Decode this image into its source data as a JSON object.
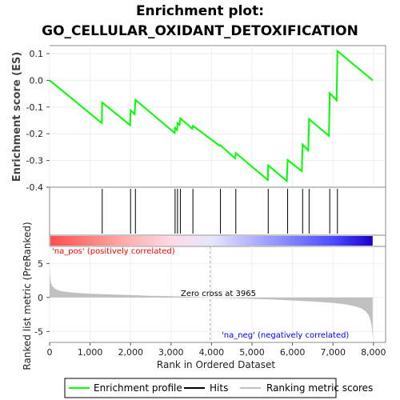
{
  "chart_data": {
    "type": "line",
    "title_line1": "Enrichment plot:",
    "title_line2": "GO_CELLULAR_OXIDANT_DETOXIFICATION",
    "top_panel": {
      "ylabel": "Enrichment score (ES)",
      "ylim": [
        -0.4,
        0.13
      ],
      "yticks": [
        0.1,
        0.0,
        -0.1,
        -0.2,
        -0.3,
        -0.4
      ],
      "ytick_labels": [
        "0.1",
        "0.0",
        "-0.1",
        "-0.2",
        "-0.3",
        "-0.4"
      ],
      "series": [
        {
          "name": "Enrichment profile",
          "color": "#00ff00",
          "x": [
            0,
            1290,
            1300,
            1990,
            2000,
            2100,
            2120,
            3090,
            3100,
            3150,
            3160,
            3210,
            3230,
            3520,
            3540,
            4200,
            4220,
            4580,
            4600,
            5390,
            5400,
            5860,
            5880,
            6230,
            6250,
            6390,
            6410,
            6900,
            6920,
            7090,
            7110,
            7980
          ],
          "y": [
            0.0,
            -0.16,
            -0.083,
            -0.168,
            -0.112,
            -0.127,
            -0.073,
            -0.197,
            -0.178,
            -0.186,
            -0.16,
            -0.167,
            -0.142,
            -0.181,
            -0.17,
            -0.245,
            -0.243,
            -0.292,
            -0.272,
            -0.373,
            -0.318,
            -0.377,
            -0.298,
            -0.34,
            -0.24,
            -0.263,
            -0.145,
            -0.208,
            -0.048,
            -0.075,
            0.11,
            0.0
          ]
        }
      ]
    },
    "hits": {
      "name": "Hits",
      "x": [
        1300,
        2000,
        2120,
        3100,
        3160,
        3230,
        3540,
        4220,
        4600,
        5400,
        5880,
        6250,
        6410,
        6920,
        7110
      ]
    },
    "ranking_colorbar": {
      "stops": [
        "#ff4d4d",
        "#ff8080",
        "#ffb3b3",
        "#ffd9e6",
        "#e6e6ff",
        "#b3b3ff",
        "#8080ff",
        "#4d4dff",
        "#1a00cc"
      ],
      "label_pos": "'na_pos' (positively correlated)",
      "label_neg": "'na_neg' (negatively correlated)",
      "pos_color": "#ff0000",
      "neg_color": "#0000ff"
    },
    "bottom_panel": {
      "ylabel": "Ranked list metric (PreRanked)",
      "ylim": [
        -6.6,
        7.5
      ],
      "yticks": [
        5,
        0,
        -5
      ],
      "ytick_labels": [
        "5",
        "0",
        "-5"
      ],
      "series": [
        {
          "name": "Ranking metric scores",
          "color": "#c0c0c0",
          "x": [
            0,
            20,
            60,
            150,
            300,
            600,
            1000,
            1500,
            2000,
            2500,
            3000,
            3500,
            3965,
            4500,
            5000,
            5500,
            6000,
            6500,
            7000,
            7300,
            7550,
            7700,
            7800,
            7880,
            7930,
            7960,
            7980
          ],
          "y": [
            4.2,
            2.5,
            1.7,
            1.2,
            0.9,
            0.7,
            0.55,
            0.45,
            0.35,
            0.25,
            0.18,
            0.1,
            0.0,
            -0.1,
            -0.2,
            -0.3,
            -0.45,
            -0.6,
            -0.8,
            -1.0,
            -1.3,
            -1.6,
            -2.0,
            -2.6,
            -3.4,
            -4.5,
            -6.0
          ]
        }
      ],
      "zero_cross_text": "Zero cross at 3965",
      "zero_cross_x": 3965
    },
    "xlabel": "Rank in Ordered Dataset",
    "xlim": [
      0,
      8300
    ],
    "xticks": [
      0,
      1000,
      2000,
      3000,
      4000,
      5000,
      6000,
      7000,
      8000
    ],
    "xtick_labels": [
      "0",
      "1,000",
      "2,000",
      "3,000",
      "4,000",
      "5,000",
      "6,000",
      "7,000",
      "8,000"
    ],
    "legend": {
      "placement": "bottom",
      "items": [
        {
          "label": "Enrichment profile",
          "color": "#00ff00"
        },
        {
          "label": "Hits",
          "color": "#000000"
        },
        {
          "label": "Ranking metric scores",
          "color": "#c0c0c0"
        }
      ]
    }
  }
}
